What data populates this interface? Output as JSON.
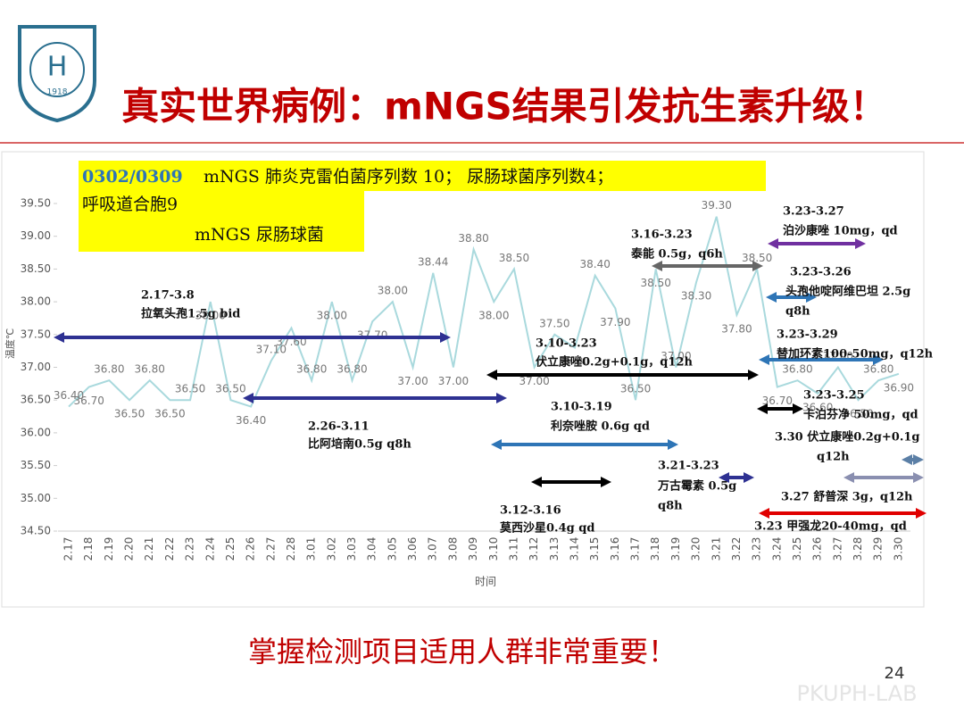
{
  "slide": {
    "title": "真实世界病例：mNGS结果引发抗生素升级！",
    "footer": "掌握检测项目适用人群非常重要！",
    "page_number": "24",
    "watermark": "PKUPH-LAB",
    "logo_year": "1918"
  },
  "chart_data": {
    "type": "line",
    "y_label": "温度℃",
    "x_label": "时间",
    "categories": [
      "2.17",
      "2.18",
      "2.19",
      "2.20",
      "2.21",
      "2.22",
      "2.23",
      "2.24",
      "2.25",
      "2.26",
      "2.27",
      "2.28",
      "3.01",
      "3.02",
      "3.03",
      "3.04",
      "3.05",
      "3.06",
      "3.07",
      "3.08",
      "3.09",
      "3.10",
      "3.11",
      "3.12",
      "3.13",
      "3.14",
      "3.15",
      "3.16",
      "3.17",
      "3.18",
      "3.19",
      "3.20",
      "3.21",
      "3.22",
      "3.23",
      "3.24",
      "3.25",
      "3.26",
      "3.27",
      "3.28",
      "3.29",
      "3.30"
    ],
    "series": [
      {
        "name": "温度",
        "color": "#a9d9dd",
        "values": [
          36.4,
          36.7,
          36.8,
          36.5,
          36.8,
          36.5,
          36.5,
          38.0,
          36.5,
          36.4,
          37.1,
          37.6,
          36.8,
          38.0,
          36.8,
          37.7,
          38.0,
          37.0,
          38.44,
          37.0,
          38.8,
          38.0,
          38.5,
          37.0,
          37.5,
          37.3,
          38.4,
          37.9,
          36.5,
          38.5,
          37.0,
          38.3,
          39.3,
          37.8,
          38.5,
          36.7,
          36.8,
          36.6,
          37.0,
          36.5,
          36.8,
          36.9
        ],
        "value_labels": [
          "36.40",
          "36.70",
          "36.80",
          "36.50",
          "36.80",
          "36.50",
          "36.50",
          "38.00",
          "36.50",
          "36.40",
          "37.10",
          "37.60",
          "36.80",
          "38.00",
          "36.80",
          "37.70",
          "38.00",
          "37.00",
          "38.44",
          "37.00",
          "38.80",
          "38.00",
          "38.50",
          "37.00",
          "37.50",
          "37.30",
          "38.40",
          "37.90",
          "36.50",
          "38.50",
          "37.00",
          "38.30",
          "39.30",
          "37.80",
          "38.50",
          "36.70",
          "36.80",
          "36.60",
          "37.00",
          "36.50",
          "36.80",
          "36.90"
        ]
      }
    ],
    "ylim": [
      34.5,
      39.5
    ],
    "yticks": [
      {
        "value": 34.5,
        "label": "34.50"
      },
      {
        "value": 35,
        "label": "35.00"
      },
      {
        "value": 35.5,
        "label": "35.50"
      },
      {
        "value": 36,
        "label": "36.00"
      },
      {
        "value": 36.5,
        "label": "36.50"
      },
      {
        "value": 37,
        "label": "37.00"
      },
      {
        "value": 37.5,
        "label": "37.50"
      },
      {
        "value": 38,
        "label": "38.00"
      },
      {
        "value": 38.5,
        "label": "38.50"
      },
      {
        "value": 39,
        "label": "39.00"
      },
      {
        "value": 39.5,
        "label": "39.50"
      }
    ],
    "grid": false,
    "highlight_box": {
      "date": "0302/0309",
      "lines": [
        "mNGS 肺炎克雷伯菌序列数 10；  尿肠球菌序列数4；",
        "呼吸道合胞9",
        "mNGS 尿肠球菌"
      ]
    },
    "annotations": [
      {
        "lines": [
          "2.17-3.8",
          "拉氧头孢1.5g bid"
        ]
      },
      {
        "lines": [
          "2.26-3.11",
          "比阿培南0.5g q8h"
        ]
      },
      {
        "lines": [
          "3.10-3.23",
          "伏立康唑0.2g+0.1g，q12h"
        ]
      },
      {
        "lines": [
          "3.10-3.19",
          "利奈唑胺 0.6g qd"
        ]
      },
      {
        "lines": [
          "3.12-3.16",
          "莫西沙星0.4g qd"
        ]
      },
      {
        "lines": [
          "3.16-3.23",
          "泰能 0.5g，q6h"
        ]
      },
      {
        "lines": [
          "3.21-3.23",
          "万古霉素 0.5g",
          "q8h"
        ]
      },
      {
        "lines": [
          "3.23-3.27",
          "泊沙康唑 10mg，qd"
        ]
      },
      {
        "lines": [
          "3.23-3.26",
          "头孢他啶阿维巴坦 2.5g",
          "q8h"
        ]
      },
      {
        "lines": [
          "3.23-3.29",
          "替加环素100-50mg，q12h"
        ]
      },
      {
        "lines": [
          "3.23-3.25",
          "卡泊芬净 50mg，qd"
        ]
      },
      {
        "lines": [
          "3.30 伏立康唑0.2g+0.1g",
          "q12h"
        ]
      },
      {
        "lines": [
          "3.27 舒普深 3g，q12h"
        ]
      },
      {
        "lines": [
          "3.23 甲强龙20-40mg，qd"
        ]
      }
    ]
  }
}
